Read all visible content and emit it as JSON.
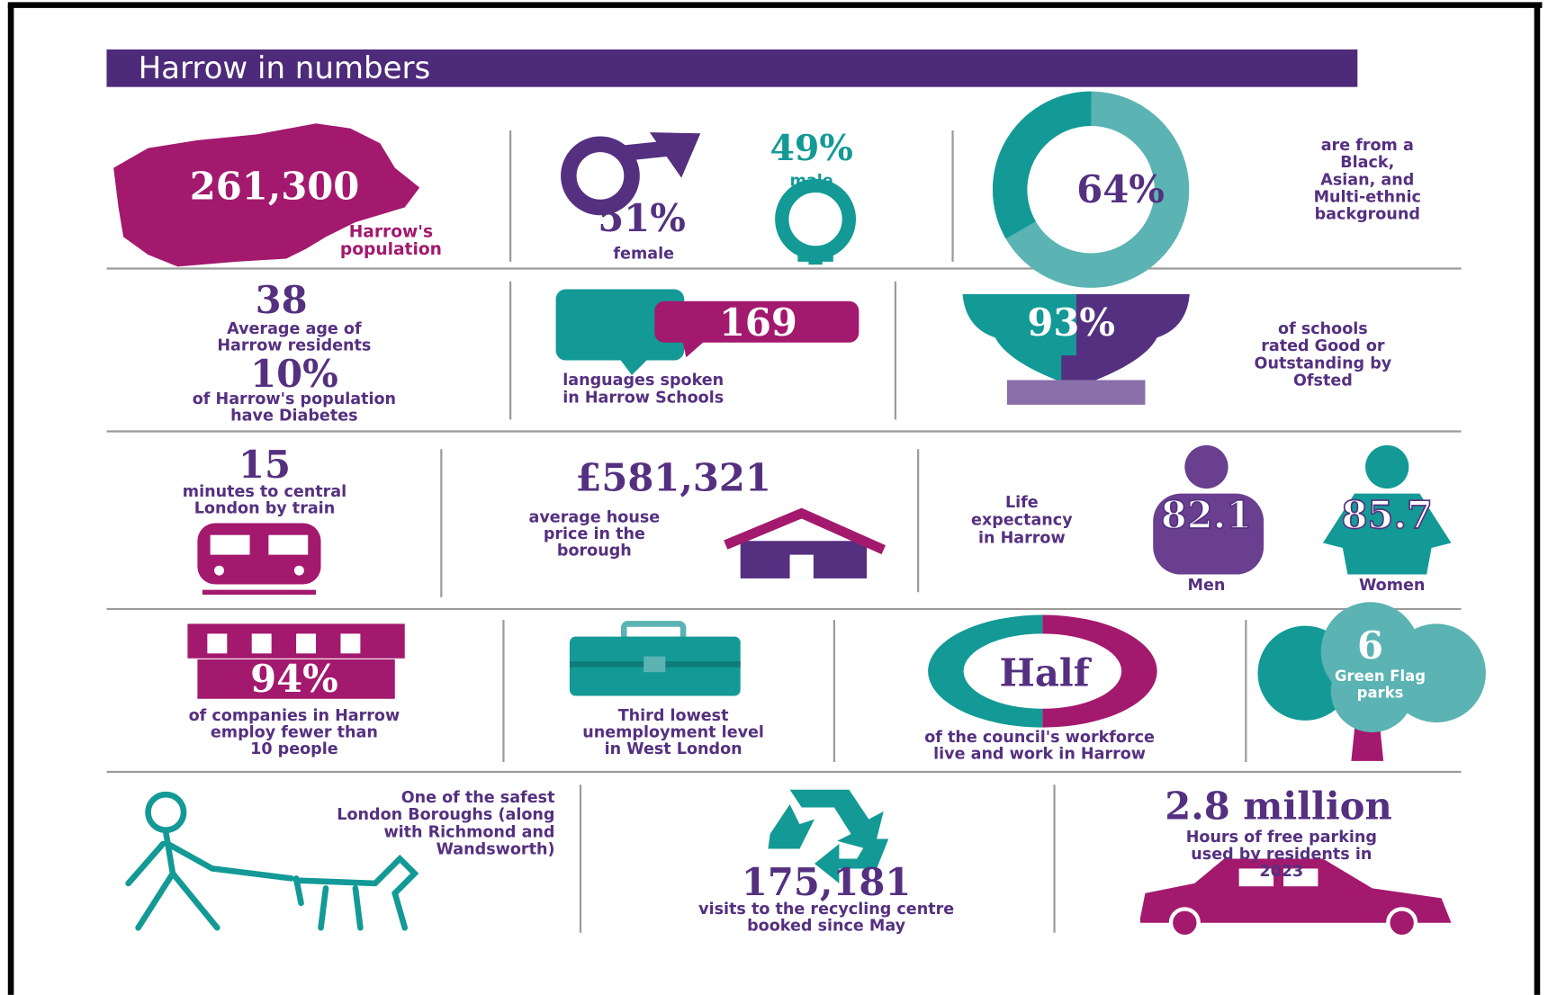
{
  "title": "Harrow in numbers",
  "population": {
    "value": "261,300",
    "label": [
      "Harrow's",
      "population"
    ]
  },
  "gender": {
    "male_value": "49%",
    "male_label": "male",
    "female_value": "51%",
    "female_label": "female"
  },
  "ethnicity": {
    "value": "64%",
    "label": [
      "are from a",
      "Black,",
      "Asian, and",
      "Multi-ethnic",
      "background"
    ]
  },
  "age": {
    "value": "38",
    "label": [
      "Average age of",
      "Harrow residents"
    ]
  },
  "diabetes": {
    "value": "10%",
    "label": [
      "of Harrow's population",
      "have Diabetes"
    ]
  },
  "languages": {
    "value": "169",
    "label": [
      "languages spoken",
      "in Harrow Schools"
    ]
  },
  "schools": {
    "value": "93%",
    "label": [
      "of schools",
      "rated Good or",
      "Outstanding by",
      "Ofsted"
    ]
  },
  "train": {
    "value": "15",
    "label": [
      "minutes to central",
      "London by train"
    ]
  },
  "house": {
    "value": "£581,321",
    "label": [
      "average house",
      "price in the",
      "borough"
    ]
  },
  "life": {
    "label": [
      "Life",
      "expectancy",
      "in Harrow"
    ],
    "men_value": "82.1",
    "men_label": "Men",
    "women_value": "85.7",
    "women_label": "Women"
  },
  "companies": {
    "value": "94%",
    "label": [
      "of companies in Harrow",
      "employ fewer than",
      "10 people"
    ]
  },
  "unemployment": {
    "label": [
      "Third lowest",
      "unemployment level",
      "in West London"
    ]
  },
  "workforce": {
    "value": "Half",
    "label": [
      "of the council's workforce",
      "live and work in Harrow"
    ]
  },
  "parks": {
    "value": "6",
    "label": [
      "Green Flag",
      "parks"
    ]
  },
  "safety": {
    "label": [
      "One of the safest",
      "London Boroughs (along",
      "with Richmond and",
      "Wandsworth)"
    ]
  },
  "recycling": {
    "value": "175,181",
    "label": [
      "visits to the recycling centre",
      "booked since May"
    ]
  },
  "parking": {
    "value": "2.8 million",
    "label": [
      "Hours of free parking",
      "used by residents in",
      "2023"
    ]
  }
}
